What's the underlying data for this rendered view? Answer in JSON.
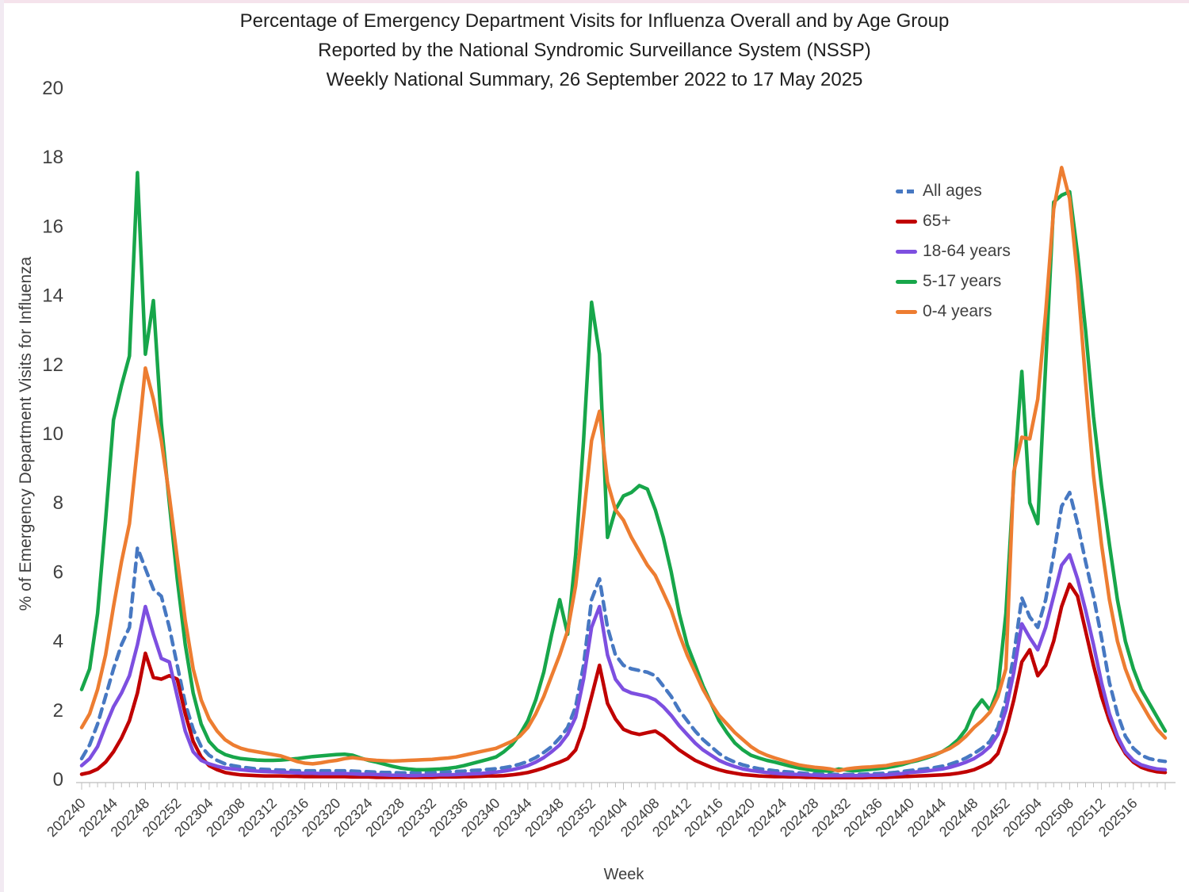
{
  "title": {
    "line1": "Percentage of Emergency Department Visits for Influenza Overall and by Age Group",
    "line2": "Reported by the National Syndromic Surveillance System (NSSP)",
    "line3": "Weekly National Summary, 26 September 2022 to 17 May 2025"
  },
  "colors": {
    "all_ages": "#4778C2",
    "age_65_plus": "#C00000",
    "age_18_64": "#7D4FE0",
    "age_5_17": "#17A64A",
    "age_0_4": "#ED7D31",
    "axis_line": "#C8C8C8",
    "tick_mark": "#BFBFBF",
    "text": "#404040"
  },
  "chart_data": {
    "type": "line",
    "title": "Percentage of Emergency Department Visits for Influenza Overall and by Age Group, NSSP, Weekly National Summary, 26 September 2022 to 17 May 2025",
    "xlabel": "Week",
    "ylabel": "% of Emergency Department Visits for Influenza",
    "ylim": [
      0,
      20
    ],
    "y_tick_values": [
      0,
      2,
      4,
      6,
      8,
      10,
      12,
      14,
      16,
      18,
      20
    ],
    "grid": false,
    "legend_position": "inside upper right",
    "x_first_week": "202240",
    "x_last_week": "202520",
    "points_per_series": 137,
    "x_ticks_every_n_weeks": 4,
    "x_tick_labels": [
      "202240",
      "202244",
      "202248",
      "202252",
      "202304",
      "202308",
      "202312",
      "202316",
      "202320",
      "202324",
      "202328",
      "202332",
      "202336",
      "202340",
      "202344",
      "202348",
      "202352",
      "202404",
      "202408",
      "202412",
      "202416",
      "202420",
      "202424",
      "202428",
      "202432",
      "202436",
      "202440",
      "202444",
      "202448",
      "202452",
      "202504",
      "202508",
      "202512",
      "202516"
    ],
    "series": [
      {
        "name": "All ages",
        "color": "#4778C2",
        "dash": "dashed",
        "values": [
          0.6,
          1.0,
          1.6,
          2.4,
          3.2,
          3.9,
          4.4,
          6.7,
          6.1,
          5.5,
          5.3,
          4.4,
          3.3,
          2.2,
          1.45,
          0.95,
          0.7,
          0.55,
          0.45,
          0.4,
          0.36,
          0.33,
          0.3,
          0.29,
          0.28,
          0.27,
          0.26,
          0.25,
          0.25,
          0.25,
          0.25,
          0.25,
          0.25,
          0.25,
          0.24,
          0.23,
          0.22,
          0.21,
          0.2,
          0.2,
          0.19,
          0.19,
          0.19,
          0.2,
          0.2,
          0.21,
          0.22,
          0.23,
          0.24,
          0.26,
          0.27,
          0.29,
          0.31,
          0.34,
          0.38,
          0.44,
          0.52,
          0.63,
          0.78,
          0.95,
          1.2,
          1.5,
          2.1,
          3.3,
          5.2,
          5.8,
          4.4,
          3.6,
          3.3,
          3.2,
          3.15,
          3.1,
          3.0,
          2.7,
          2.4,
          2.0,
          1.7,
          1.4,
          1.15,
          0.95,
          0.75,
          0.6,
          0.5,
          0.42,
          0.36,
          0.31,
          0.28,
          0.25,
          0.23,
          0.21,
          0.19,
          0.17,
          0.16,
          0.15,
          0.15,
          0.14,
          0.14,
          0.15,
          0.15,
          0.16,
          0.17,
          0.18,
          0.2,
          0.23,
          0.26,
          0.28,
          0.31,
          0.34,
          0.38,
          0.44,
          0.52,
          0.62,
          0.75,
          0.9,
          1.1,
          1.5,
          2.3,
          3.6,
          5.25,
          4.7,
          4.4,
          5.2,
          6.5,
          7.9,
          8.3,
          7.4,
          6.3,
          5.3,
          4.1,
          2.8,
          1.9,
          1.25,
          0.9,
          0.7,
          0.6,
          0.55,
          0.52
        ]
      },
      {
        "name": "65+",
        "color": "#C00000",
        "dash": "solid",
        "values": [
          0.15,
          0.2,
          0.3,
          0.5,
          0.8,
          1.2,
          1.7,
          2.5,
          3.65,
          2.95,
          2.9,
          3.0,
          2.9,
          1.9,
          1.1,
          0.65,
          0.4,
          0.28,
          0.2,
          0.16,
          0.13,
          0.12,
          0.11,
          0.1,
          0.1,
          0.1,
          0.09,
          0.09,
          0.08,
          0.08,
          0.08,
          0.08,
          0.08,
          0.08,
          0.07,
          0.07,
          0.07,
          0.06,
          0.06,
          0.06,
          0.06,
          0.06,
          0.06,
          0.06,
          0.06,
          0.07,
          0.07,
          0.07,
          0.08,
          0.08,
          0.09,
          0.1,
          0.1,
          0.11,
          0.13,
          0.16,
          0.2,
          0.26,
          0.33,
          0.42,
          0.5,
          0.6,
          0.85,
          1.5,
          2.4,
          3.3,
          2.2,
          1.75,
          1.45,
          1.35,
          1.3,
          1.35,
          1.4,
          1.25,
          1.05,
          0.85,
          0.7,
          0.55,
          0.45,
          0.35,
          0.28,
          0.22,
          0.18,
          0.14,
          0.12,
          0.1,
          0.09,
          0.08,
          0.08,
          0.07,
          0.07,
          0.06,
          0.06,
          0.05,
          0.05,
          0.05,
          0.05,
          0.05,
          0.05,
          0.06,
          0.06,
          0.06,
          0.07,
          0.08,
          0.09,
          0.1,
          0.11,
          0.12,
          0.13,
          0.15,
          0.18,
          0.22,
          0.28,
          0.38,
          0.5,
          0.75,
          1.4,
          2.3,
          3.4,
          3.75,
          3.0,
          3.3,
          4.0,
          5.0,
          5.65,
          5.3,
          4.3,
          3.3,
          2.4,
          1.7,
          1.15,
          0.75,
          0.5,
          0.35,
          0.27,
          0.22,
          0.2
        ]
      },
      {
        "name": "18-64 years",
        "color": "#7D4FE0",
        "dash": "solid",
        "values": [
          0.4,
          0.6,
          0.95,
          1.55,
          2.1,
          2.5,
          3.0,
          3.9,
          5.0,
          4.2,
          3.5,
          3.4,
          2.4,
          1.4,
          0.8,
          0.55,
          0.45,
          0.38,
          0.33,
          0.3,
          0.28,
          0.26,
          0.24,
          0.23,
          0.22,
          0.21,
          0.2,
          0.19,
          0.18,
          0.18,
          0.17,
          0.17,
          0.17,
          0.17,
          0.16,
          0.15,
          0.15,
          0.14,
          0.13,
          0.12,
          0.12,
          0.11,
          0.11,
          0.12,
          0.12,
          0.13,
          0.13,
          0.14,
          0.15,
          0.16,
          0.17,
          0.19,
          0.21,
          0.24,
          0.28,
          0.33,
          0.4,
          0.5,
          0.63,
          0.8,
          1.0,
          1.3,
          1.8,
          2.9,
          4.4,
          5.0,
          3.6,
          2.9,
          2.6,
          2.5,
          2.45,
          2.4,
          2.3,
          2.1,
          1.85,
          1.55,
          1.3,
          1.05,
          0.85,
          0.7,
          0.55,
          0.45,
          0.37,
          0.3,
          0.26,
          0.23,
          0.2,
          0.18,
          0.16,
          0.15,
          0.14,
          0.13,
          0.12,
          0.11,
          0.11,
          0.11,
          0.11,
          0.11,
          0.11,
          0.12,
          0.12,
          0.13,
          0.15,
          0.17,
          0.2,
          0.22,
          0.24,
          0.27,
          0.3,
          0.35,
          0.42,
          0.5,
          0.6,
          0.75,
          0.95,
          1.3,
          2.0,
          3.1,
          4.5,
          4.1,
          3.75,
          4.4,
          5.3,
          6.2,
          6.5,
          5.8,
          4.9,
          3.9,
          2.8,
          1.9,
          1.25,
          0.8,
          0.55,
          0.42,
          0.35,
          0.3,
          0.28
        ]
      },
      {
        "name": "5-17 years",
        "color": "#17A64A",
        "dash": "solid",
        "values": [
          2.6,
          3.2,
          4.8,
          7.5,
          10.4,
          11.4,
          12.25,
          17.55,
          12.3,
          13.85,
          10.3,
          8.0,
          5.8,
          3.9,
          2.5,
          1.6,
          1.1,
          0.85,
          0.72,
          0.65,
          0.6,
          0.58,
          0.56,
          0.55,
          0.55,
          0.56,
          0.58,
          0.6,
          0.63,
          0.66,
          0.68,
          0.7,
          0.72,
          0.73,
          0.7,
          0.62,
          0.55,
          0.5,
          0.44,
          0.38,
          0.33,
          0.3,
          0.28,
          0.28,
          0.29,
          0.3,
          0.32,
          0.35,
          0.4,
          0.46,
          0.52,
          0.58,
          0.65,
          0.8,
          1.0,
          1.3,
          1.7,
          2.3,
          3.1,
          4.2,
          5.2,
          4.2,
          6.5,
          9.8,
          13.8,
          12.3,
          7.0,
          7.8,
          8.2,
          8.3,
          8.5,
          8.4,
          7.8,
          7.0,
          6.0,
          4.8,
          3.9,
          3.3,
          2.7,
          2.2,
          1.7,
          1.35,
          1.05,
          0.85,
          0.7,
          0.62,
          0.55,
          0.5,
          0.44,
          0.38,
          0.33,
          0.29,
          0.26,
          0.25,
          0.24,
          0.3,
          0.27,
          0.25,
          0.27,
          0.29,
          0.31,
          0.34,
          0.38,
          0.43,
          0.5,
          0.55,
          0.62,
          0.7,
          0.8,
          0.95,
          1.15,
          1.45,
          2.0,
          2.3,
          2.0,
          2.6,
          4.8,
          8.7,
          11.8,
          8.0,
          7.4,
          12.0,
          16.7,
          16.9,
          17.0,
          15.2,
          13.0,
          10.5,
          8.5,
          6.8,
          5.2,
          4.0,
          3.2,
          2.6,
          2.2,
          1.8,
          1.4
        ]
      },
      {
        "name": "0-4 years",
        "color": "#ED7D31",
        "dash": "solid",
        "values": [
          1.5,
          1.9,
          2.6,
          3.6,
          5.0,
          6.3,
          7.4,
          9.6,
          11.9,
          11.0,
          9.8,
          8.2,
          6.4,
          4.6,
          3.2,
          2.3,
          1.75,
          1.4,
          1.15,
          1.0,
          0.9,
          0.84,
          0.8,
          0.76,
          0.72,
          0.68,
          0.6,
          0.52,
          0.47,
          0.45,
          0.48,
          0.52,
          0.55,
          0.6,
          0.63,
          0.6,
          0.57,
          0.55,
          0.54,
          0.53,
          0.54,
          0.55,
          0.56,
          0.57,
          0.58,
          0.6,
          0.62,
          0.65,
          0.7,
          0.75,
          0.8,
          0.85,
          0.9,
          1.0,
          1.1,
          1.25,
          1.5,
          1.9,
          2.4,
          3.0,
          3.6,
          4.3,
          5.6,
          7.6,
          9.8,
          10.65,
          8.6,
          7.8,
          7.5,
          7.0,
          6.6,
          6.2,
          5.9,
          5.4,
          4.9,
          4.2,
          3.6,
          3.1,
          2.6,
          2.2,
          1.85,
          1.6,
          1.35,
          1.15,
          0.95,
          0.8,
          0.7,
          0.62,
          0.55,
          0.48,
          0.42,
          0.38,
          0.35,
          0.33,
          0.3,
          0.25,
          0.3,
          0.33,
          0.35,
          0.36,
          0.38,
          0.4,
          0.45,
          0.48,
          0.52,
          0.58,
          0.65,
          0.72,
          0.8,
          0.9,
          1.05,
          1.25,
          1.5,
          1.7,
          1.95,
          2.4,
          3.2,
          8.9,
          9.9,
          9.85,
          11.0,
          13.5,
          16.5,
          17.7,
          16.8,
          14.5,
          11.5,
          8.8,
          6.8,
          5.2,
          4.0,
          3.2,
          2.6,
          2.2,
          1.8,
          1.45,
          1.2
        ]
      }
    ]
  }
}
